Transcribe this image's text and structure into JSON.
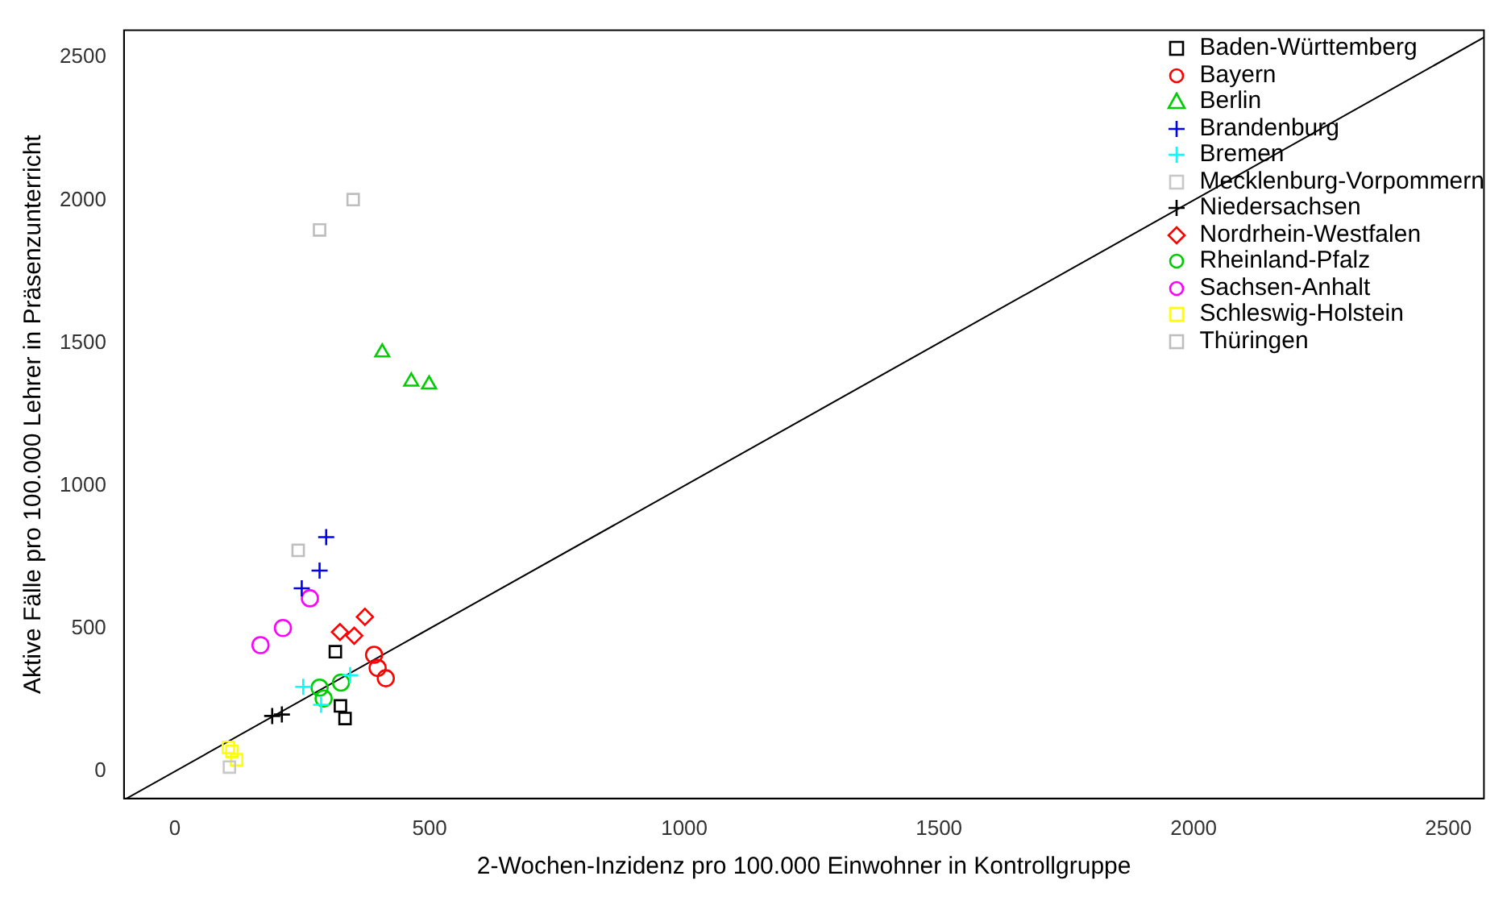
{
  "chart_data": {
    "type": "scatter",
    "xlabel": "2-Wochen-Inzidenz pro 100.000 Einwohner in Kontrollgruppe",
    "ylabel": "Aktive Fälle pro 100.000 Lehrer in Präsenzunterricht",
    "xlim": [
      -100,
      2570
    ],
    "ylim": [
      -95,
      2595
    ],
    "xticks": [
      0,
      500,
      1000,
      1500,
      2000,
      2500
    ],
    "yticks": [
      0,
      500,
      1000,
      1500,
      2000,
      2500
    ],
    "grid": false,
    "legend": "top right",
    "series": [
      {
        "name": "Baden-Württemberg",
        "color": "#000000",
        "marker": "square",
        "x": [
          315,
          325,
          334
        ],
        "values": [
          419,
          229,
          185
        ]
      },
      {
        "name": "Bayern",
        "color": "#ff0000",
        "marker": "circle",
        "x": [
          391,
          398,
          414
        ],
        "values": [
          408,
          362,
          326
        ]
      },
      {
        "name": "Berlin",
        "color": "#00cd00",
        "marker": "triangle",
        "x": [
          407,
          464,
          499
        ],
        "values": [
          1467,
          1365,
          1355
        ]
      },
      {
        "name": "Brandenburg",
        "color": "#0000ff",
        "marker": "cross",
        "x": [
          297,
          284,
          249
        ],
        "values": [
          820,
          703,
          641
        ]
      },
      {
        "name": "Bremen",
        "color": "#00ffff",
        "marker": "cross",
        "x": [
          252,
          344,
          287
        ],
        "values": [
          296,
          337,
          233
        ]
      },
      {
        "name": "Mecklenburg-Vorpommern",
        "color": "#c8c8c8",
        "marker": "square",
        "x": [
          107
        ],
        "values": [
          15
        ]
      },
      {
        "name": "Niedersachsen",
        "color": "#000000",
        "marker": "cross",
        "x": [
          191,
          210
        ],
        "values": [
          194,
          199
        ]
      },
      {
        "name": "Nordrhein-Westfalen",
        "color": "#ff0000",
        "marker": "diamond",
        "x": [
          373,
          324,
          352
        ],
        "values": [
          541,
          488,
          475
        ]
      },
      {
        "name": "Rheinland-Pfalz",
        "color": "#00cd00",
        "marker": "circle",
        "x": [
          284,
          326,
          292
        ],
        "values": [
          293,
          311,
          255
        ]
      },
      {
        "name": "Sachsen-Anhalt",
        "color": "#ff00ff",
        "marker": "circle",
        "x": [
          265,
          212,
          168
        ],
        "values": [
          606,
          502,
          442
        ]
      },
      {
        "name": "Schleswig-Holstein",
        "color": "#ffff00",
        "marker": "square",
        "x": [
          105,
          112,
          121
        ],
        "values": [
          84,
          70,
          41
        ]
      },
      {
        "name": "Thüringen",
        "color": "#bebebe",
        "marker": "square",
        "x": [
          350,
          284,
          242
        ],
        "values": [
          2002,
          1896,
          774
        ]
      },
      {
        "type": "line",
        "color": "#000000",
        "marker": "none",
        "x": [
          -95,
          2570
        ],
        "values": [
          -95,
          2570
        ]
      }
    ]
  }
}
